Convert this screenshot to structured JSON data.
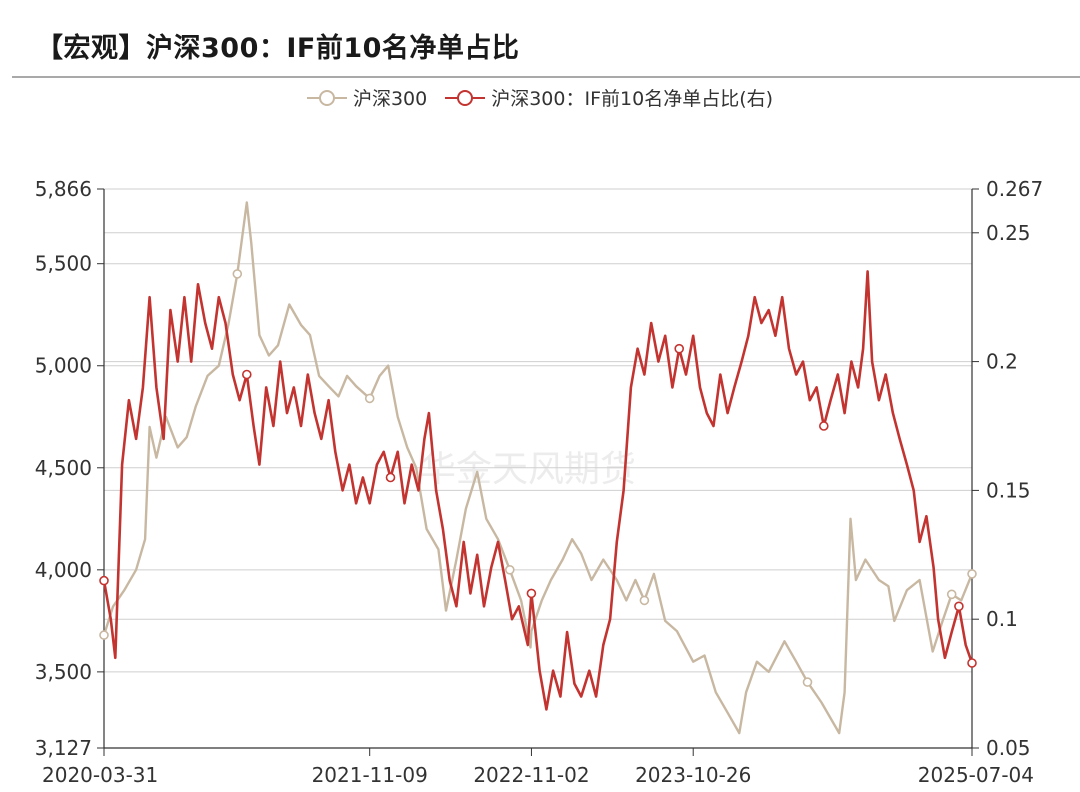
{
  "title": "【宏观】沪深300：IF前10名净单占比",
  "watermark": "华金天风期货",
  "colors": {
    "hs300": "#c8b8a2",
    "ratio": "#c33430",
    "grid": "#cfcfcf",
    "axis": "#333333"
  },
  "legend": [
    {
      "name": "沪深300",
      "color": "#c8b8a2"
    },
    {
      "name": "沪深300：IF前10名净单占比(右)",
      "color": "#c33430"
    }
  ],
  "chart_data": {
    "type": "line",
    "left_axis": {
      "ticks": [
        "3,127",
        "3,500",
        "4,000",
        "4,500",
        "5,000",
        "5,500",
        "5,866"
      ],
      "range": [
        3127,
        5866
      ]
    },
    "right_axis": {
      "ticks": [
        "0.05",
        "0.1",
        "0.15",
        "0.2",
        "0.25",
        "0.267"
      ],
      "range": [
        0.05,
        0.267
      ]
    },
    "x_ticks": [
      "2020-03-31",
      "2021-11-09",
      "2022-11-02",
      "2023-10-26",
      "2025-07-04"
    ],
    "x_range": [
      "2020-03-31",
      "2025-07-04"
    ],
    "grid": true,
    "legend_position": "top",
    "series": [
      {
        "name": "沪深300",
        "axis": "left",
        "points": [
          [
            "2020-03-31",
            3680
          ],
          [
            "2020-04-20",
            3820
          ],
          [
            "2020-05-15",
            3900
          ],
          [
            "2020-06-10",
            4000
          ],
          [
            "2020-06-30",
            4150
          ],
          [
            "2020-07-10",
            4700
          ],
          [
            "2020-07-25",
            4550
          ],
          [
            "2020-08-15",
            4750
          ],
          [
            "2020-09-10",
            4600
          ],
          [
            "2020-09-30",
            4650
          ],
          [
            "2020-10-20",
            4800
          ],
          [
            "2020-11-15",
            4950
          ],
          [
            "2020-12-10",
            5000
          ],
          [
            "2020-12-31",
            5200
          ],
          [
            "2021-01-20",
            5450
          ],
          [
            "2021-02-10",
            5800
          ],
          [
            "2021-02-20",
            5600
          ],
          [
            "2021-03-10",
            5150
          ],
          [
            "2021-03-31",
            5050
          ],
          [
            "2021-04-20",
            5100
          ],
          [
            "2021-05-15",
            5300
          ],
          [
            "2021-06-10",
            5200
          ],
          [
            "2021-06-30",
            5150
          ],
          [
            "2021-07-20",
            4950
          ],
          [
            "2021-08-10",
            4900
          ],
          [
            "2021-09-01",
            4850
          ],
          [
            "2021-09-20",
            4950
          ],
          [
            "2021-10-10",
            4900
          ],
          [
            "2021-11-09",
            4840
          ],
          [
            "2021-12-01",
            4950
          ],
          [
            "2021-12-20",
            5000
          ],
          [
            "2022-01-10",
            4750
          ],
          [
            "2022-01-31",
            4600
          ],
          [
            "2022-02-20",
            4500
          ],
          [
            "2022-03-15",
            4200
          ],
          [
            "2022-04-10",
            4100
          ],
          [
            "2022-04-27",
            3800
          ],
          [
            "2022-05-20",
            4050
          ],
          [
            "2022-06-10",
            4300
          ],
          [
            "2022-07-05",
            4480
          ],
          [
            "2022-07-25",
            4250
          ],
          [
            "2022-08-20",
            4150
          ],
          [
            "2022-09-15",
            4000
          ],
          [
            "2022-10-10",
            3850
          ],
          [
            "2022-10-31",
            3620
          ],
          [
            "2022-11-02",
            3700
          ],
          [
            "2022-11-25",
            3850
          ],
          [
            "2022-12-15",
            3950
          ],
          [
            "2023-01-10",
            4050
          ],
          [
            "2023-01-31",
            4150
          ],
          [
            "2023-02-20",
            4080
          ],
          [
            "2023-03-15",
            3950
          ],
          [
            "2023-04-10",
            4050
          ],
          [
            "2023-05-10",
            3950
          ],
          [
            "2023-05-31",
            3850
          ],
          [
            "2023-06-20",
            3950
          ],
          [
            "2023-07-10",
            3850
          ],
          [
            "2023-07-31",
            3980
          ],
          [
            "2023-08-25",
            3750
          ],
          [
            "2023-09-20",
            3700
          ],
          [
            "2023-10-26",
            3550
          ],
          [
            "2023-11-20",
            3580
          ],
          [
            "2023-12-15",
            3400
          ],
          [
            "2024-01-10",
            3300
          ],
          [
            "2024-02-05",
            3200
          ],
          [
            "2024-02-20",
            3400
          ],
          [
            "2024-03-15",
            3550
          ],
          [
            "2024-04-10",
            3500
          ],
          [
            "2024-05-15",
            3650
          ],
          [
            "2024-06-10",
            3550
          ],
          [
            "2024-07-05",
            3450
          ],
          [
            "2024-08-05",
            3350
          ],
          [
            "2024-09-13",
            3200
          ],
          [
            "2024-09-25",
            3400
          ],
          [
            "2024-10-08",
            4250
          ],
          [
            "2024-10-20",
            3950
          ],
          [
            "2024-11-10",
            4050
          ],
          [
            "2024-12-10",
            3950
          ],
          [
            "2024-12-31",
            3920
          ],
          [
            "2025-01-13",
            3750
          ],
          [
            "2025-02-10",
            3900
          ],
          [
            "2025-03-10",
            3950
          ],
          [
            "2025-04-08",
            3600
          ],
          [
            "2025-04-30",
            3750
          ],
          [
            "2025-05-20",
            3880
          ],
          [
            "2025-06-10",
            3850
          ],
          [
            "2025-07-04",
            3980
          ]
        ]
      },
      {
        "name": "沪深300：IF前10名净单占比(右)",
        "axis": "right",
        "points": [
          [
            "2020-03-31",
            0.115
          ],
          [
            "2020-04-15",
            0.1
          ],
          [
            "2020-04-25",
            0.085
          ],
          [
            "2020-05-10",
            0.16
          ],
          [
            "2020-05-25",
            0.185
          ],
          [
            "2020-06-10",
            0.17
          ],
          [
            "2020-06-25",
            0.19
          ],
          [
            "2020-07-10",
            0.225
          ],
          [
            "2020-07-25",
            0.19
          ],
          [
            "2020-08-10",
            0.17
          ],
          [
            "2020-08-25",
            0.22
          ],
          [
            "2020-09-10",
            0.2
          ],
          [
            "2020-09-25",
            0.225
          ],
          [
            "2020-10-10",
            0.2
          ],
          [
            "2020-10-25",
            0.23
          ],
          [
            "2020-11-10",
            0.215
          ],
          [
            "2020-11-25",
            0.205
          ],
          [
            "2020-12-10",
            0.225
          ],
          [
            "2020-12-25",
            0.215
          ],
          [
            "2021-01-10",
            0.195
          ],
          [
            "2021-01-25",
            0.185
          ],
          [
            "2021-02-10",
            0.195
          ],
          [
            "2021-02-25",
            0.175
          ],
          [
            "2021-03-10",
            0.16
          ],
          [
            "2021-03-25",
            0.19
          ],
          [
            "2021-04-10",
            0.175
          ],
          [
            "2021-04-25",
            0.2
          ],
          [
            "2021-05-10",
            0.18
          ],
          [
            "2021-05-25",
            0.19
          ],
          [
            "2021-06-10",
            0.175
          ],
          [
            "2021-06-25",
            0.195
          ],
          [
            "2021-07-10",
            0.18
          ],
          [
            "2021-07-25",
            0.17
          ],
          [
            "2021-08-10",
            0.185
          ],
          [
            "2021-08-25",
            0.165
          ],
          [
            "2021-09-10",
            0.15
          ],
          [
            "2021-09-25",
            0.16
          ],
          [
            "2021-10-10",
            0.145
          ],
          [
            "2021-10-25",
            0.155
          ],
          [
            "2021-11-09",
            0.145
          ],
          [
            "2021-11-25",
            0.16
          ],
          [
            "2021-12-10",
            0.165
          ],
          [
            "2021-12-25",
            0.155
          ],
          [
            "2022-01-10",
            0.165
          ],
          [
            "2022-01-25",
            0.145
          ],
          [
            "2022-02-10",
            0.16
          ],
          [
            "2022-02-25",
            0.15
          ],
          [
            "2022-03-10",
            0.17
          ],
          [
            "2022-03-20",
            0.18
          ],
          [
            "2022-04-05",
            0.15
          ],
          [
            "2022-04-20",
            0.135
          ],
          [
            "2022-05-05",
            0.115
          ],
          [
            "2022-05-20",
            0.105
          ],
          [
            "2022-06-05",
            0.13
          ],
          [
            "2022-06-20",
            0.11
          ],
          [
            "2022-07-05",
            0.125
          ],
          [
            "2022-07-20",
            0.105
          ],
          [
            "2022-08-05",
            0.12
          ],
          [
            "2022-08-20",
            0.13
          ],
          [
            "2022-09-05",
            0.115
          ],
          [
            "2022-09-20",
            0.1
          ],
          [
            "2022-10-05",
            0.105
          ],
          [
            "2022-10-25",
            0.09
          ],
          [
            "2022-11-02",
            0.11
          ],
          [
            "2022-11-20",
            0.08
          ],
          [
            "2022-12-05",
            0.065
          ],
          [
            "2022-12-20",
            0.08
          ],
          [
            "2023-01-05",
            0.07
          ],
          [
            "2023-01-20",
            0.095
          ],
          [
            "2023-02-05",
            0.075
          ],
          [
            "2023-02-20",
            0.07
          ],
          [
            "2023-03-10",
            0.08
          ],
          [
            "2023-03-25",
            0.07
          ],
          [
            "2023-04-10",
            0.09
          ],
          [
            "2023-04-25",
            0.1
          ],
          [
            "2023-05-10",
            0.13
          ],
          [
            "2023-05-25",
            0.15
          ],
          [
            "2023-06-10",
            0.19
          ],
          [
            "2023-06-25",
            0.205
          ],
          [
            "2023-07-10",
            0.195
          ],
          [
            "2023-07-25",
            0.215
          ],
          [
            "2023-08-10",
            0.2
          ],
          [
            "2023-08-25",
            0.21
          ],
          [
            "2023-09-10",
            0.19
          ],
          [
            "2023-09-25",
            0.205
          ],
          [
            "2023-10-10",
            0.195
          ],
          [
            "2023-10-26",
            0.21
          ],
          [
            "2023-11-10",
            0.19
          ],
          [
            "2023-11-25",
            0.18
          ],
          [
            "2023-12-10",
            0.175
          ],
          [
            "2023-12-25",
            0.195
          ],
          [
            "2024-01-10",
            0.18
          ],
          [
            "2024-01-25",
            0.19
          ],
          [
            "2024-02-10",
            0.2
          ],
          [
            "2024-02-25",
            0.21
          ],
          [
            "2024-03-10",
            0.225
          ],
          [
            "2024-03-25",
            0.215
          ],
          [
            "2024-04-10",
            0.22
          ],
          [
            "2024-04-25",
            0.21
          ],
          [
            "2024-05-10",
            0.225
          ],
          [
            "2024-05-25",
            0.205
          ],
          [
            "2024-06-10",
            0.195
          ],
          [
            "2024-06-25",
            0.2
          ],
          [
            "2024-07-10",
            0.185
          ],
          [
            "2024-07-25",
            0.19
          ],
          [
            "2024-08-10",
            0.175
          ],
          [
            "2024-08-25",
            0.185
          ],
          [
            "2024-09-10",
            0.195
          ],
          [
            "2024-09-25",
            0.18
          ],
          [
            "2024-10-10",
            0.2
          ],
          [
            "2024-10-25",
            0.19
          ],
          [
            "2024-11-05",
            0.205
          ],
          [
            "2024-11-15",
            0.235
          ],
          [
            "2024-11-25",
            0.2
          ],
          [
            "2024-12-10",
            0.185
          ],
          [
            "2024-12-25",
            0.195
          ],
          [
            "2025-01-10",
            0.18
          ],
          [
            "2025-01-25",
            0.17
          ],
          [
            "2025-02-10",
            0.16
          ],
          [
            "2025-02-25",
            0.15
          ],
          [
            "2025-03-10",
            0.13
          ],
          [
            "2025-03-25",
            0.14
          ],
          [
            "2025-04-10",
            0.12
          ],
          [
            "2025-04-20",
            0.1
          ],
          [
            "2025-05-05",
            0.085
          ],
          [
            "2025-05-20",
            0.095
          ],
          [
            "2025-06-05",
            0.105
          ],
          [
            "2025-06-20",
            0.09
          ],
          [
            "2025-07-04",
            0.083
          ]
        ]
      }
    ]
  }
}
